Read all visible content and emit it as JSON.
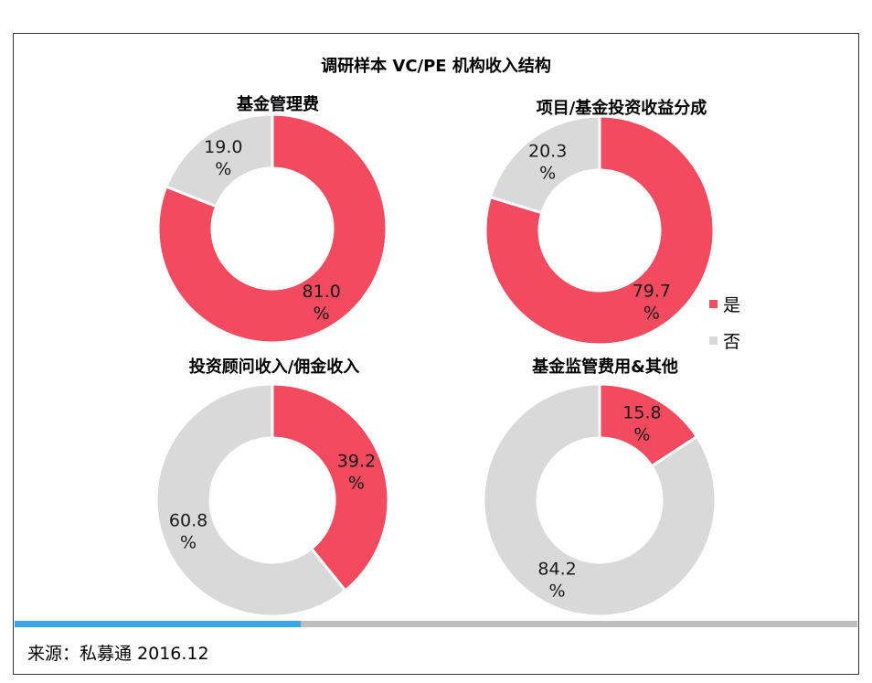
{
  "main_title": "调研样本 VC/PE 机构收入结构",
  "legend": [
    {
      "label": "是",
      "color": "#f24a5e"
    },
    {
      "label": "否",
      "color": "#d9d9d9"
    }
  ],
  "source": "来源：私募通  2016.12",
  "progress": {
    "fraction": 0.34,
    "color": "#3ea6e4",
    "track": "#bfbfbf"
  },
  "chart_data": [
    {
      "type": "pie",
      "title": "基金管理费",
      "categories": [
        "是",
        "否"
      ],
      "values": [
        81.0,
        19.0
      ],
      "labels": [
        "81.0 %",
        "19.0 %"
      ],
      "colors": [
        "#f24a5e",
        "#d9d9d9"
      ]
    },
    {
      "type": "pie",
      "title": "项目/基金投资收益分成",
      "categories": [
        "是",
        "否"
      ],
      "values": [
        79.7,
        20.3
      ],
      "labels": [
        "79.7 %",
        "20.3 %"
      ],
      "colors": [
        "#f24a5e",
        "#d9d9d9"
      ]
    },
    {
      "type": "pie",
      "title": "投资顾问收入/佣金收入",
      "categories": [
        "是",
        "否"
      ],
      "values": [
        39.2,
        60.8
      ],
      "labels": [
        "39.2 %",
        "60.8 %"
      ],
      "colors": [
        "#f24a5e",
        "#d9d9d9"
      ]
    },
    {
      "type": "pie",
      "title": "基金监管费用&其他",
      "categories": [
        "是",
        "否"
      ],
      "values": [
        15.8,
        84.2
      ],
      "labels": [
        "15.8 %",
        "84.2 %"
      ],
      "colors": [
        "#f24a5e",
        "#d9d9d9"
      ]
    }
  ]
}
